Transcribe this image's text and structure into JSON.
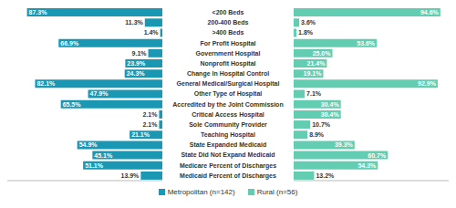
{
  "chart_data": {
    "type": "bar",
    "orientation": "horizontal",
    "data_labels": true,
    "tick_labels": false,
    "grid": false,
    "legend": "bottom",
    "categories": [
      "<200 Beds",
      "200-400 Beds",
      ">400 Beds",
      "For Profit Hospital",
      "Government Hospital",
      "Nonprofit Hospital",
      "Change In Hospital Control",
      "General Medical/Surgical Hospital",
      "Other Type of Hospital",
      "Accredited by the Joint Commission",
      "Critical Access Hospital",
      "Sole Community Provider",
      "Teaching Hospital",
      "State Expanded Medicaid",
      "State Did Not Expand Medicaid",
      "Medicare Percent of Discharges",
      "Medicaid Percent of Discharges"
    ],
    "xlim": [
      0,
      100
    ],
    "series": [
      {
        "name": "Metropolitan (n=142)",
        "color": "#1a98b3",
        "values": [
          87.3,
          11.3,
          1.4,
          66.9,
          9.1,
          23.9,
          24.3,
          82.1,
          47.9,
          65.5,
          2.1,
          2.1,
          21.1,
          54.9,
          45.1,
          51.1,
          13.9
        ],
        "value_labels": [
          "87.3%",
          "11.3%",
          "1.4%",
          "66.9%",
          "9.1%",
          "23.9%",
          "24.3%",
          "82.1%",
          "47.9%",
          "65.5%",
          "2.1%",
          "2.1%",
          "21.1%",
          "54.9%",
          "45.1%",
          "51.1%",
          "13.9%"
        ]
      },
      {
        "name": "Rural (n=56)",
        "color": "#63cdb1",
        "values": [
          94.6,
          3.6,
          1.8,
          53.6,
          25.0,
          21.4,
          19.1,
          92.9,
          7.1,
          30.4,
          30.4,
          10.7,
          8.9,
          39.3,
          60.7,
          54.3,
          13.2
        ],
        "value_labels": [
          "94.6%",
          "3.6%",
          "1.8%",
          "53.6%",
          "25.0%",
          "21.4%",
          "19.1%",
          "92.9%",
          "7.1%",
          "30.4%",
          "30.4%",
          "10.7%",
          "8.9%",
          "39.3%",
          "60.7%",
          "54.3%",
          "13.2%"
        ]
      }
    ]
  }
}
